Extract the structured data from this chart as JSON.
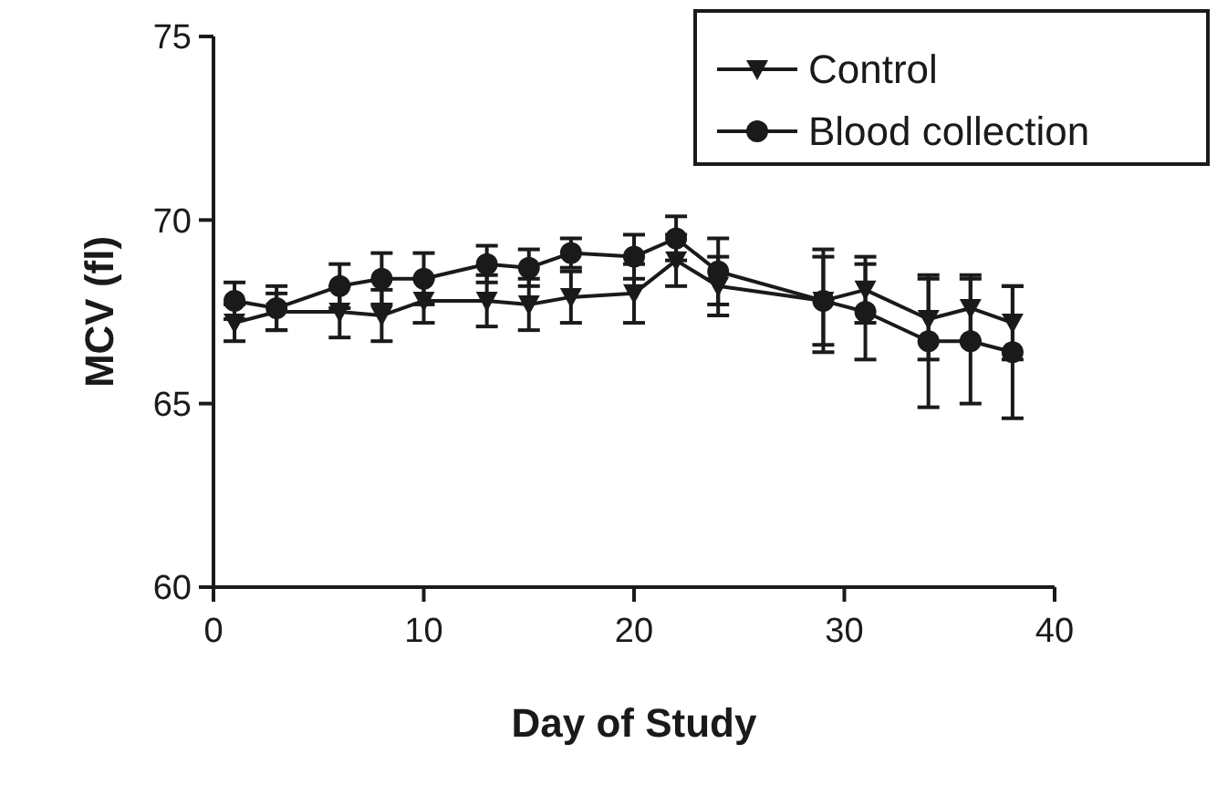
{
  "chart_data": {
    "type": "line",
    "xlabel": "Day of Study",
    "ylabel": "MCV (fl)",
    "x": [
      1,
      3,
      6,
      8,
      10,
      13,
      15,
      17,
      20,
      22,
      24,
      29,
      31,
      34,
      36,
      38
    ],
    "xlim": [
      0,
      40
    ],
    "xticks": [
      0,
      10,
      20,
      30,
      40
    ],
    "ylim": [
      60,
      75
    ],
    "yticks": [
      60,
      65,
      70,
      75
    ],
    "grid": false,
    "legend": "top right",
    "series": [
      {
        "name": "Control",
        "color": "#1a1a1a",
        "marker": "triangle",
        "values": [
          67.2,
          67.5,
          67.5,
          67.4,
          67.8,
          67.8,
          67.7,
          67.9,
          68.0,
          68.9,
          68.2,
          67.8,
          68.1,
          67.3,
          67.6,
          67.2
        ],
        "errors": [
          0.5,
          0.5,
          0.7,
          0.7,
          0.6,
          0.7,
          0.7,
          0.7,
          0.8,
          0.7,
          0.8,
          1.2,
          0.9,
          1.1,
          0.9,
          1.0
        ]
      },
      {
        "name": "Blood collection",
        "color": "#1a1a1a",
        "marker": "circle",
        "values": [
          67.8,
          67.6,
          68.2,
          68.4,
          68.4,
          68.8,
          68.7,
          69.1,
          69.0,
          69.5,
          68.6,
          67.8,
          67.5,
          66.7,
          66.7,
          66.4
        ],
        "errors": [
          0.5,
          0.6,
          0.6,
          0.7,
          0.7,
          0.5,
          0.5,
          0.4,
          0.6,
          0.6,
          0.9,
          1.4,
          1.3,
          1.8,
          1.7,
          1.8
        ]
      }
    ]
  }
}
